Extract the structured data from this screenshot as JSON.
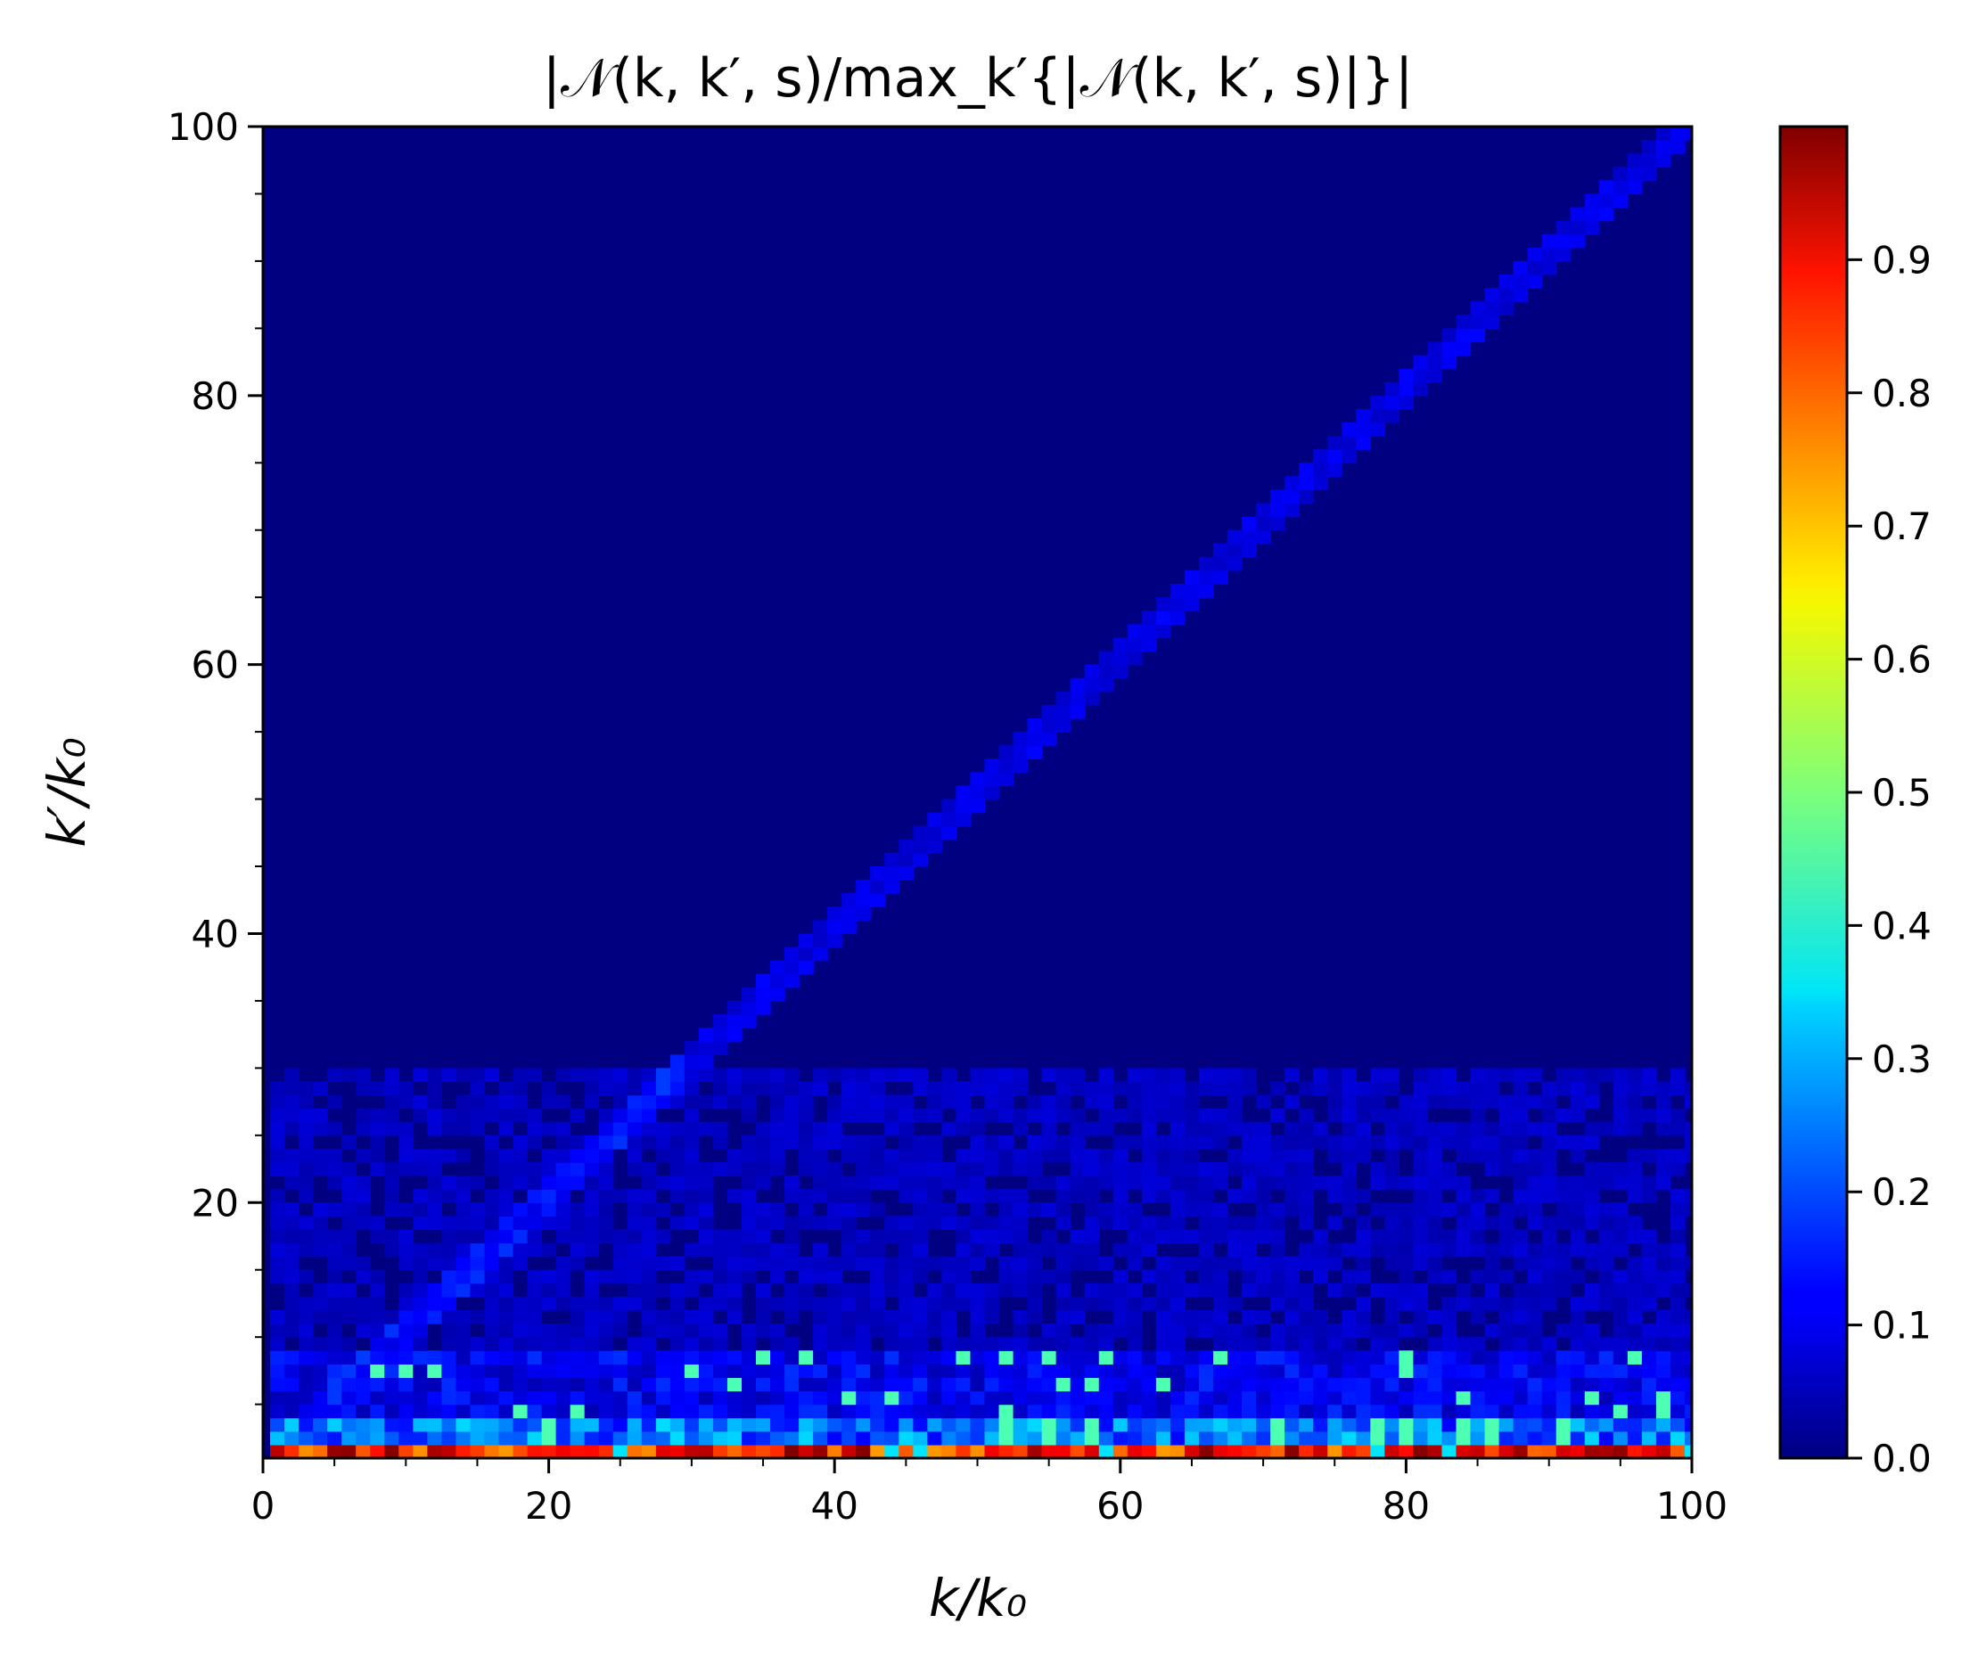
{
  "chart_data": {
    "type": "heatmap",
    "title": "|𝒩(k, k′, s)/max_k′{|𝒩(k, k′, s)|}|",
    "xlabel": "k/k₀",
    "ylabel": "k′/k₀",
    "xlim": [
      0,
      100
    ],
    "ylim": [
      1,
      100
    ],
    "xticks": [
      0,
      20,
      40,
      60,
      80,
      100
    ],
    "xtick_labels": [
      "0",
      "20",
      "40",
      "60",
      "80",
      "100"
    ],
    "yticks": [
      20,
      40,
      60,
      80,
      100
    ],
    "ytick_labels": [
      "20",
      "40",
      "60",
      "80",
      "100"
    ],
    "colorbar": {
      "colormap": "jet",
      "range": [
        0,
        1
      ],
      "ticks": [
        0.0,
        0.1,
        0.2,
        0.3,
        0.4,
        0.5,
        0.6,
        0.7,
        0.8,
        0.9
      ],
      "tick_labels": [
        "0.0",
        "0.1",
        "0.2",
        "0.3",
        "0.4",
        "0.5",
        "0.6",
        "0.7",
        "0.8",
        "0.9"
      ]
    },
    "grid": false,
    "features": {
      "bottom_band": {
        "kprime": [
          1,
          2
        ],
        "value": 0.9
      },
      "secondary_band": {
        "kprime": [
          2,
          4
        ],
        "value": 0.3
      },
      "diagonal": {
        "relation": "kprime = k",
        "value": 0.1
      },
      "background": 0.02
    }
  }
}
